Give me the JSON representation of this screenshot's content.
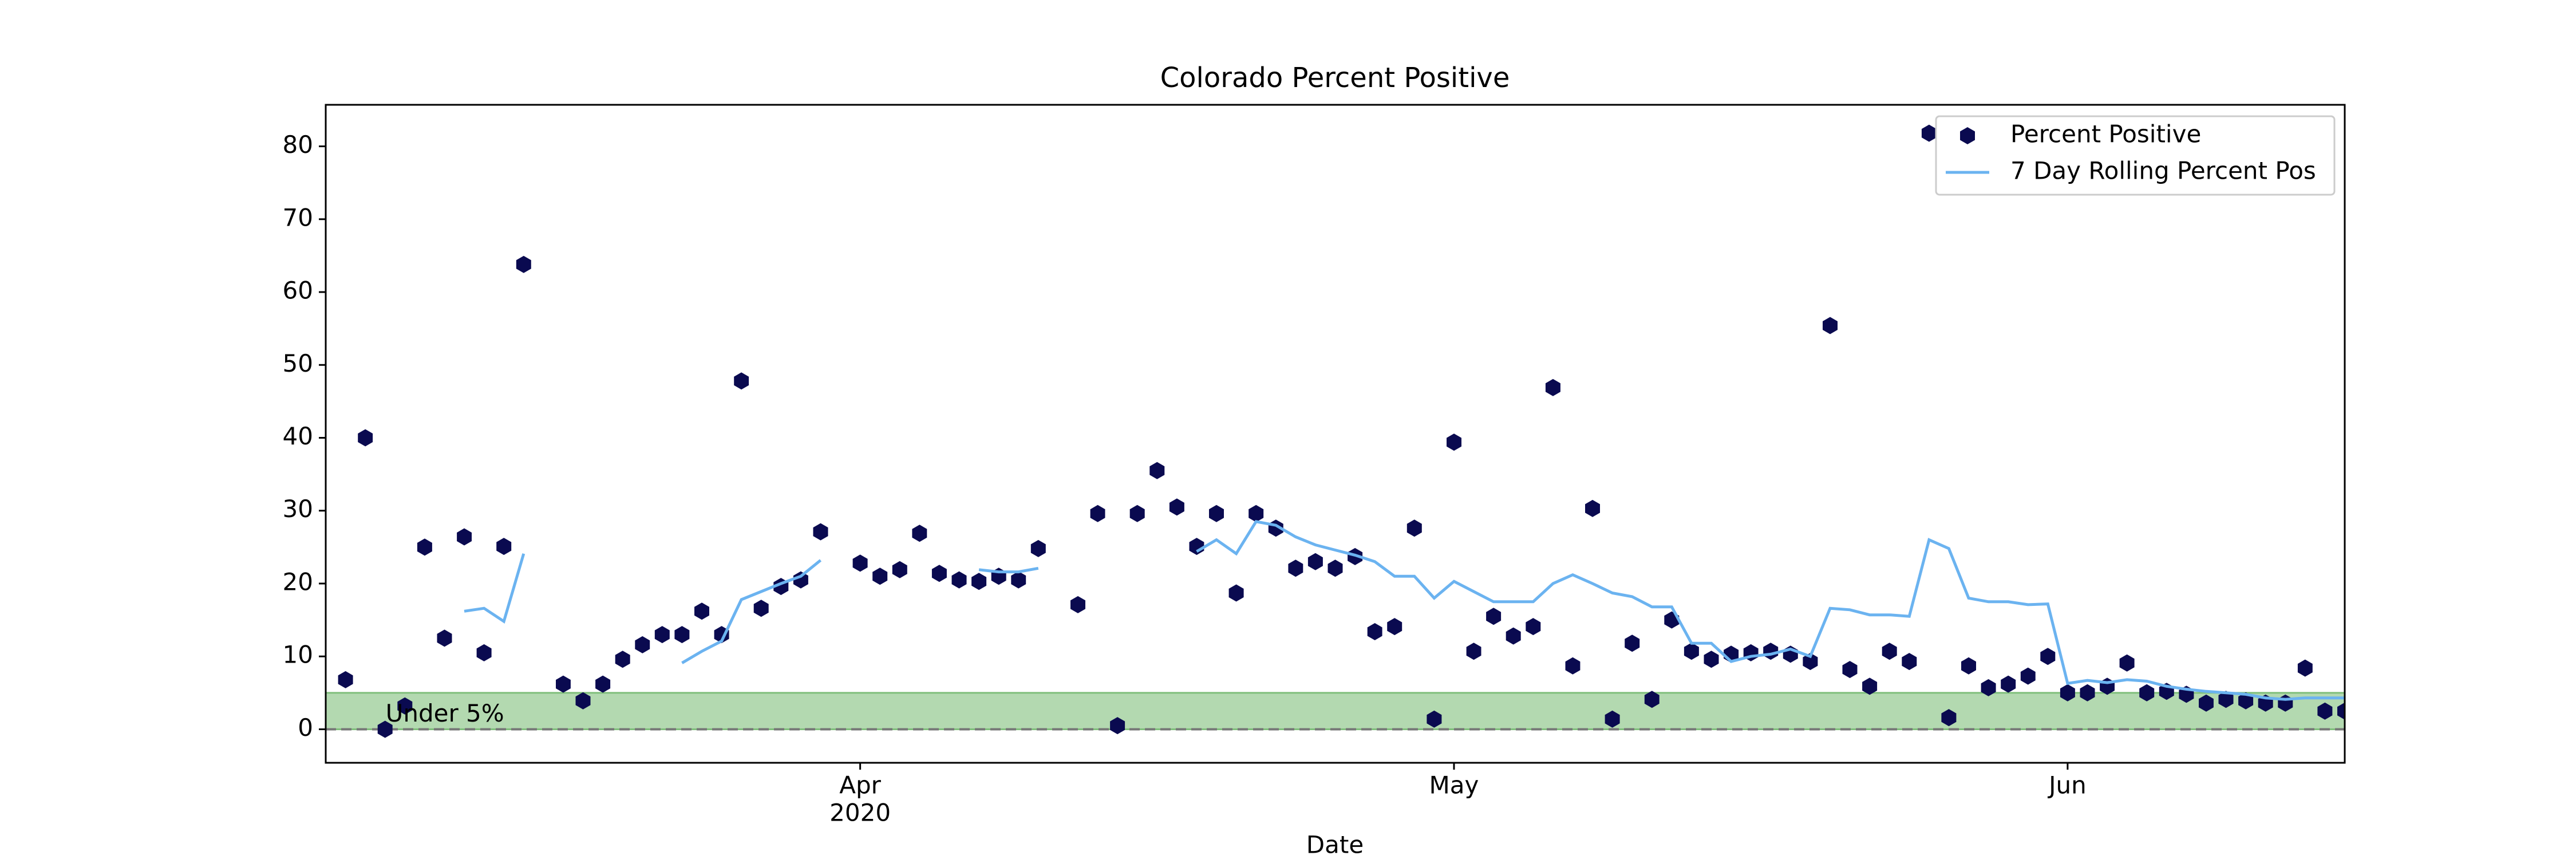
{
  "chart_data": {
    "type": "scatter-line",
    "title": "Colorado Percent Positive",
    "xlabel": "Date",
    "xlim": [
      65,
      167
    ],
    "xticks": [
      {
        "value": 92,
        "label": "Apr"
      },
      {
        "value": 122,
        "label": "May"
      },
      {
        "value": 153,
        "label": "Jun"
      }
    ],
    "xtick_year": "2020",
    "ylim": [
      -4.6,
      85.7
    ],
    "yticks": [
      0,
      10,
      20,
      30,
      40,
      50,
      60,
      70,
      80
    ],
    "legend": "upper right",
    "band": {
      "range": [
        0,
        5
      ],
      "label": "Under 5%",
      "color": "#b3d9b0"
    },
    "reference_line": 0,
    "x": [
      66,
      67,
      68,
      69,
      70,
      71,
      72,
      73,
      74,
      75,
      76,
      77,
      78,
      79,
      80,
      81,
      82,
      83,
      84,
      85,
      86,
      87,
      88,
      89,
      90,
      91,
      92,
      93,
      94,
      95,
      96,
      97,
      98,
      99,
      100,
      101,
      102,
      103,
      104,
      105,
      106,
      107,
      108,
      109,
      110,
      111,
      112,
      113,
      114,
      115,
      116,
      117,
      118,
      119,
      120,
      121,
      122,
      123,
      124,
      125,
      126,
      127,
      128,
      129,
      130,
      131,
      132,
      133,
      134,
      135,
      136,
      137,
      138,
      139,
      140,
      141,
      142,
      143,
      144,
      145,
      146,
      147,
      148,
      149,
      150,
      151,
      152,
      153,
      154,
      155,
      156,
      157,
      158,
      159,
      160,
      161,
      162,
      163,
      164,
      165,
      166,
      167
    ],
    "series": [
      {
        "name": "Percent Positive",
        "color": "#0a0a50",
        "style": "marker",
        "values": [
          6.8,
          40,
          0,
          3.2,
          25,
          12.5,
          26.4,
          10.5,
          25.1,
          63.8,
          null,
          6.2,
          3.9,
          6.2,
          9.6,
          11.6,
          13,
          13,
          16.2,
          13,
          47.8,
          16.6,
          19.6,
          20.5,
          27.1,
          null,
          22.8,
          21,
          21.9,
          26.9,
          21.4,
          20.5,
          20.3,
          21,
          20.5,
          24.8,
          null,
          17.1,
          29.6,
          0.5,
          29.6,
          35.5,
          30.5,
          25.1,
          29.6,
          18.7,
          29.6,
          27.6,
          22.1,
          23,
          22.1,
          23.7,
          13.4,
          14.1,
          27.6,
          1.4,
          39.4,
          10.7,
          15.5,
          12.8,
          14.1,
          46.9,
          8.7,
          30.3,
          1.4,
          11.8,
          4.1,
          15,
          10.7,
          9.6,
          10.3,
          10.5,
          10.7,
          10.3,
          9.3,
          55.4,
          8.2,
          5.9,
          10.7,
          9.3,
          81.8,
          1.6,
          8.7,
          5.7,
          6.2,
          7.3,
          10,
          5,
          5,
          5.9,
          9.1,
          5,
          5.2,
          4.8,
          3.6,
          4.1,
          3.9,
          3.6,
          3.6,
          8.4,
          2.5,
          2.5
        ]
      },
      {
        "name": "7 Day Rolling Percent Pos",
        "color": "#6bb3f0",
        "style": "line",
        "values": [
          null,
          null,
          null,
          null,
          null,
          null,
          16.2,
          16.6,
          14.8,
          24.1,
          null,
          null,
          null,
          null,
          null,
          null,
          null,
          9.1,
          10.7,
          12.1,
          17.8,
          18.9,
          20,
          21,
          23.2,
          null,
          null,
          null,
          null,
          null,
          null,
          null,
          21.9,
          21.6,
          21.6,
          22.1,
          null,
          null,
          null,
          null,
          null,
          null,
          null,
          24.4,
          26,
          24.1,
          28.5,
          28,
          26.4,
          25.3,
          24.6,
          23.9,
          23,
          21,
          21,
          18,
          20.3,
          18.9,
          17.5,
          17.5,
          17.5,
          20,
          21.2,
          20,
          18.7,
          18.2,
          16.8,
          16.8,
          11.8,
          11.8,
          9.3,
          10,
          10.3,
          11,
          10,
          16.6,
          16.4,
          15.7,
          15.7,
          15.5,
          26,
          24.8,
          18,
          17.5,
          17.5,
          17.1,
          17.2,
          6.3,
          6.7,
          6.4,
          6.8,
          6.6,
          5.9,
          5.5,
          5.2,
          5,
          4.8,
          4.3,
          4.1,
          4.3,
          4.3,
          4.3
        ]
      }
    ]
  }
}
